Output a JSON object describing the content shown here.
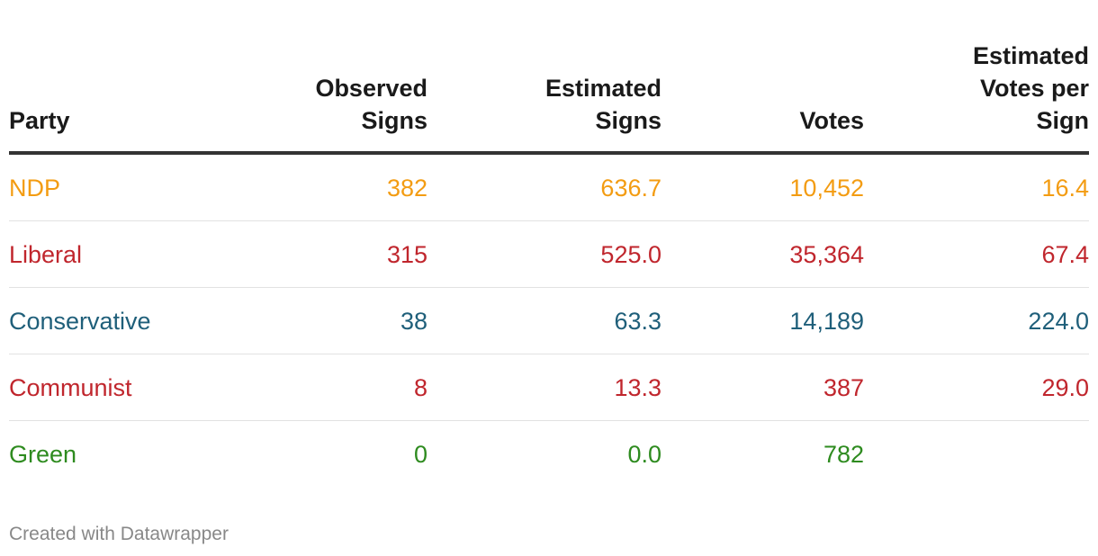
{
  "chart_data": {
    "type": "table",
    "columns": [
      "Party",
      "Observed Signs",
      "Estimated Signs",
      "Votes",
      "Estimated Votes per Sign"
    ],
    "rows": [
      {
        "party": "NDP",
        "observed": "382",
        "estimated": "636.7",
        "votes": "10,452",
        "per_sign": "16.4",
        "color": "#f39c12"
      },
      {
        "party": "Liberal",
        "observed": "315",
        "estimated": "525.0",
        "votes": "35,364",
        "per_sign": "67.4",
        "color": "#c0262d"
      },
      {
        "party": "Conservative",
        "observed": "38",
        "estimated": "63.3",
        "votes": "14,189",
        "per_sign": "224.0",
        "color": "#1f5f7a"
      },
      {
        "party": "Communist",
        "observed": "8",
        "estimated": "13.3",
        "votes": "387",
        "per_sign": "29.0",
        "color": "#c0262d"
      },
      {
        "party": "Green",
        "observed": "0",
        "estimated": "0.0",
        "votes": "782",
        "per_sign": "",
        "color": "#2e8b1f"
      }
    ]
  },
  "footer": {
    "credit": "Created with Datawrapper"
  }
}
